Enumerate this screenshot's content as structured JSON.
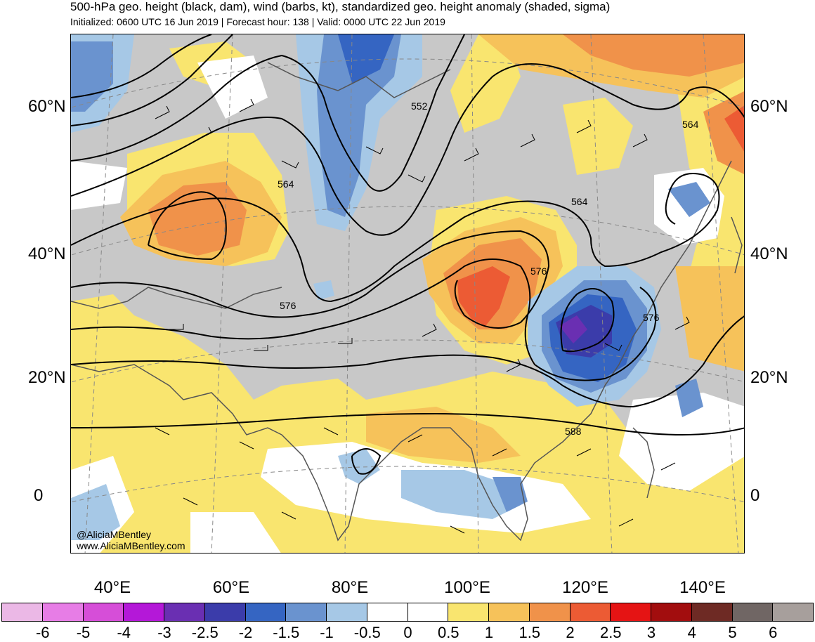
{
  "title": "500-hPa geo. height (black, dam), wind (barbs, kt), standardized geo. height anomaly (shaded, sigma)",
  "subtitle": "Initialized: 0600 UTC 16 Jun 2019 | Forecast hour: 138 | Valid: 0000 UTC 22 Jun 2019",
  "lat_labels": [
    "60°N",
    "40°N",
    "20°N",
    "0"
  ],
  "lon_labels": [
    "40°E",
    "60°E",
    "80°E",
    "100°E",
    "120°E",
    "140°E"
  ],
  "contour_labels": [
    "552",
    "564",
    "564",
    "564",
    "576",
    "576",
    "576",
    "588"
  ],
  "credit": {
    "handle": "@AliciaMBentley",
    "site": "www.AliciaMBentley.com"
  },
  "colorbar": {
    "labels": [
      "-6",
      "-5",
      "-4",
      "-3",
      "-2.5",
      "-2",
      "-1.5",
      "-1",
      "-0.5",
      "0",
      "0.5",
      "1",
      "1.5",
      "2",
      "2.5",
      "3",
      "4",
      "5",
      "6"
    ],
    "colors": [
      "#ebb8e6",
      "#e77de6",
      "#d64ed8",
      "#b418d8",
      "#6a2fb2",
      "#3b3caa",
      "#3565c2",
      "#6a93cf",
      "#a6c8e6",
      "#ffffff",
      "#ffffff",
      "#f9e56f",
      "#f6c25a",
      "#f0924a",
      "#ec5b34",
      "#e51414",
      "#a20d0e",
      "#6e2a24",
      "#706664",
      "#a79f9c"
    ]
  },
  "anomaly_colors": {
    "gray": "#c8c8c8",
    "yellow": "#f9e56f",
    "lightorange": "#f6c25a",
    "orange": "#f0924a",
    "redorange": "#ec5b34",
    "lightblue": "#a6c8e6",
    "blue": "#6a93cf",
    "midblue": "#3565c2",
    "darkblue": "#3b3caa",
    "purple": "#6a2fb2"
  }
}
